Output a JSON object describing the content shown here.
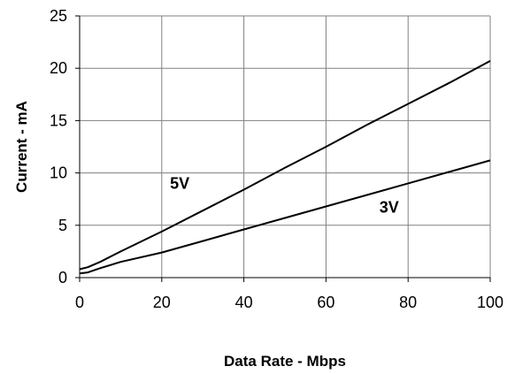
{
  "chart_data": {
    "type": "line",
    "title": "",
    "xlabel": "Data Rate - Mbps",
    "ylabel": "Current - mA",
    "xlim": [
      0,
      100
    ],
    "ylim": [
      0,
      25
    ],
    "xticks": [
      0,
      20,
      40,
      60,
      80,
      100
    ],
    "yticks": [
      0,
      5,
      10,
      15,
      20,
      25
    ],
    "grid": true,
    "legend": "none",
    "series": [
      {
        "name": "5V",
        "color": "#000000",
        "x": [
          0,
          2,
          5,
          10,
          20,
          30,
          40,
          50,
          60,
          70,
          80,
          90,
          100
        ],
        "y": [
          0.8,
          1.0,
          1.5,
          2.5,
          4.4,
          6.4,
          8.4,
          10.5,
          12.5,
          14.6,
          16.6,
          18.6,
          20.7
        ]
      },
      {
        "name": "3V",
        "color": "#000000",
        "x": [
          0,
          2,
          5,
          10,
          20,
          30,
          40,
          50,
          60,
          70,
          80,
          90,
          100
        ],
        "y": [
          0.4,
          0.5,
          0.9,
          1.5,
          2.4,
          3.5,
          4.6,
          5.7,
          6.8,
          7.9,
          9.0,
          10.1,
          11.2
        ]
      }
    ],
    "annotations": [
      {
        "text": "5V",
        "x": 22,
        "y": 8.5
      },
      {
        "text": "3V",
        "x": 73,
        "y": 6.2
      }
    ]
  }
}
